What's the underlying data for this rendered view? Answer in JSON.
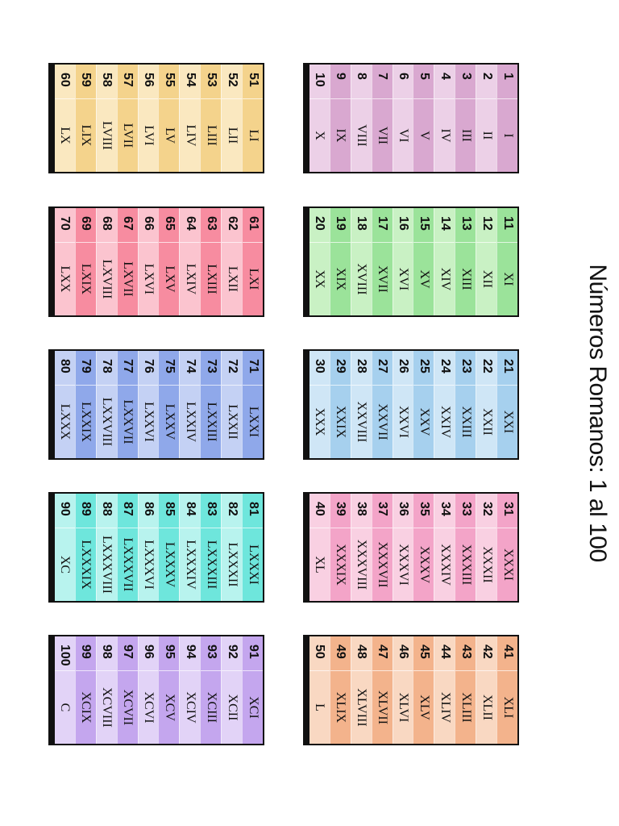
{
  "title": "Números Romanos: 1 al 100",
  "tables": [
    {
      "colors": [
        "#d9a8d0",
        "#ecd0e7"
      ],
      "rows": [
        {
          "n": "1",
          "r": "I"
        },
        {
          "n": "2",
          "r": "II"
        },
        {
          "n": "3",
          "r": "III"
        },
        {
          "n": "4",
          "r": "IV"
        },
        {
          "n": "5",
          "r": "V"
        },
        {
          "n": "6",
          "r": "VI"
        },
        {
          "n": "7",
          "r": "VII"
        },
        {
          "n": "8",
          "r": "VIII"
        },
        {
          "n": "9",
          "r": "IX"
        },
        {
          "n": "10",
          "r": "X"
        }
      ]
    },
    {
      "colors": [
        "#9be39a",
        "#c9f1c4"
      ],
      "rows": [
        {
          "n": "11",
          "r": "XI"
        },
        {
          "n": "12",
          "r": "XII"
        },
        {
          "n": "13",
          "r": "XIII"
        },
        {
          "n": "14",
          "r": "XIV"
        },
        {
          "n": "15",
          "r": "XV"
        },
        {
          "n": "16",
          "r": "XVI"
        },
        {
          "n": "17",
          "r": "XVII"
        },
        {
          "n": "18",
          "r": "XVIII"
        },
        {
          "n": "19",
          "r": "XIX"
        },
        {
          "n": "20",
          "r": "XX"
        }
      ]
    },
    {
      "colors": [
        "#a6d0ee",
        "#cfe6f6"
      ],
      "rows": [
        {
          "n": "21",
          "r": "XXI"
        },
        {
          "n": "22",
          "r": "XXII"
        },
        {
          "n": "23",
          "r": "XXIII"
        },
        {
          "n": "24",
          "r": "XXIV"
        },
        {
          "n": "25",
          "r": "XXV"
        },
        {
          "n": "26",
          "r": "XXVI"
        },
        {
          "n": "27",
          "r": "XXVII"
        },
        {
          "n": "28",
          "r": "XXVIII"
        },
        {
          "n": "29",
          "r": "XXIX"
        },
        {
          "n": "30",
          "r": "XXX"
        }
      ]
    },
    {
      "colors": [
        "#f3a4c8",
        "#f9d0e2"
      ],
      "rows": [
        {
          "n": "31",
          "r": "XXXI"
        },
        {
          "n": "32",
          "r": "XXXII"
        },
        {
          "n": "33",
          "r": "XXXIII"
        },
        {
          "n": "34",
          "r": "XXXIV"
        },
        {
          "n": "35",
          "r": "XXXV"
        },
        {
          "n": "36",
          "r": "XXXVI"
        },
        {
          "n": "37",
          "r": "XXXVII"
        },
        {
          "n": "38",
          "r": "XXXVIII"
        },
        {
          "n": "39",
          "r": "XXXIX"
        },
        {
          "n": "40",
          "r": "XL"
        }
      ]
    },
    {
      "colors": [
        "#f3b38c",
        "#f9d8c2"
      ],
      "rows": [
        {
          "n": "41",
          "r": "XLI"
        },
        {
          "n": "42",
          "r": "XLII"
        },
        {
          "n": "43",
          "r": "XLIII"
        },
        {
          "n": "44",
          "r": "XLIV"
        },
        {
          "n": "45",
          "r": "XLV"
        },
        {
          "n": "46",
          "r": "XLVI"
        },
        {
          "n": "47",
          "r": "XLVII"
        },
        {
          "n": "48",
          "r": "XLVIII"
        },
        {
          "n": "49",
          "r": "XLIX"
        },
        {
          "n": "50",
          "r": "L"
        }
      ]
    },
    {
      "colors": [
        "#f4d38c",
        "#fae8c0"
      ],
      "rows": [
        {
          "n": "51",
          "r": "LI"
        },
        {
          "n": "52",
          "r": "LII"
        },
        {
          "n": "53",
          "r": "LIII"
        },
        {
          "n": "54",
          "r": "LIV"
        },
        {
          "n": "55",
          "r": "LV"
        },
        {
          "n": "56",
          "r": "LVI"
        },
        {
          "n": "57",
          "r": "LVII"
        },
        {
          "n": "58",
          "r": "LVIII"
        },
        {
          "n": "59",
          "r": "LIX"
        },
        {
          "n": "60",
          "r": "LX"
        }
      ]
    },
    {
      "colors": [
        "#f78ca0",
        "#fbc4cf"
      ],
      "rows": [
        {
          "n": "61",
          "r": "LXI"
        },
        {
          "n": "62",
          "r": "LXII"
        },
        {
          "n": "63",
          "r": "LXIII"
        },
        {
          "n": "64",
          "r": "LXIV"
        },
        {
          "n": "65",
          "r": "LXV"
        },
        {
          "n": "66",
          "r": "LXVI"
        },
        {
          "n": "67",
          "r": "LXVII"
        },
        {
          "n": "68",
          "r": "LXVIII"
        },
        {
          "n": "69",
          "r": "LXIX"
        },
        {
          "n": "70",
          "r": "LXX"
        }
      ]
    },
    {
      "colors": [
        "#8fa8ea",
        "#c4d1f4"
      ],
      "rows": [
        {
          "n": "71",
          "r": "LXXI"
        },
        {
          "n": "72",
          "r": "LXXII"
        },
        {
          "n": "73",
          "r": "LXXIII"
        },
        {
          "n": "74",
          "r": "LXXIV"
        },
        {
          "n": "75",
          "r": "LXXV"
        },
        {
          "n": "76",
          "r": "LXXVI"
        },
        {
          "n": "77",
          "r": "LXXVII"
        },
        {
          "n": "78",
          "r": "LXXVIII"
        },
        {
          "n": "79",
          "r": "LXXIX"
        },
        {
          "n": "80",
          "r": "LXXX"
        }
      ]
    },
    {
      "colors": [
        "#6ee6dc",
        "#b8f3ee"
      ],
      "rows": [
        {
          "n": "81",
          "r": "LXXXI"
        },
        {
          "n": "82",
          "r": "LXXXII"
        },
        {
          "n": "83",
          "r": "LXXXIII"
        },
        {
          "n": "84",
          "r": "LXXXIV"
        },
        {
          "n": "85",
          "r": "LXXXV"
        },
        {
          "n": "86",
          "r": "LXXXVI"
        },
        {
          "n": "87",
          "r": "LXXXVII"
        },
        {
          "n": "88",
          "r": "LXXXVIII"
        },
        {
          "n": "89",
          "r": "LXXXIX"
        },
        {
          "n": "90",
          "r": "XC"
        }
      ]
    },
    {
      "colors": [
        "#c4a6ee",
        "#e2d3f7"
      ],
      "rows": [
        {
          "n": "91",
          "r": "XCI"
        },
        {
          "n": "92",
          "r": "XCII"
        },
        {
          "n": "93",
          "r": "XCIII"
        },
        {
          "n": "94",
          "r": "XCIV"
        },
        {
          "n": "95",
          "r": "XCV"
        },
        {
          "n": "96",
          "r": "XCVI"
        },
        {
          "n": "97",
          "r": "XCVII"
        },
        {
          "n": "98",
          "r": "XCVIII"
        },
        {
          "n": "99",
          "r": "XCIX"
        },
        {
          "n": "100",
          "r": "C"
        }
      ]
    }
  ]
}
